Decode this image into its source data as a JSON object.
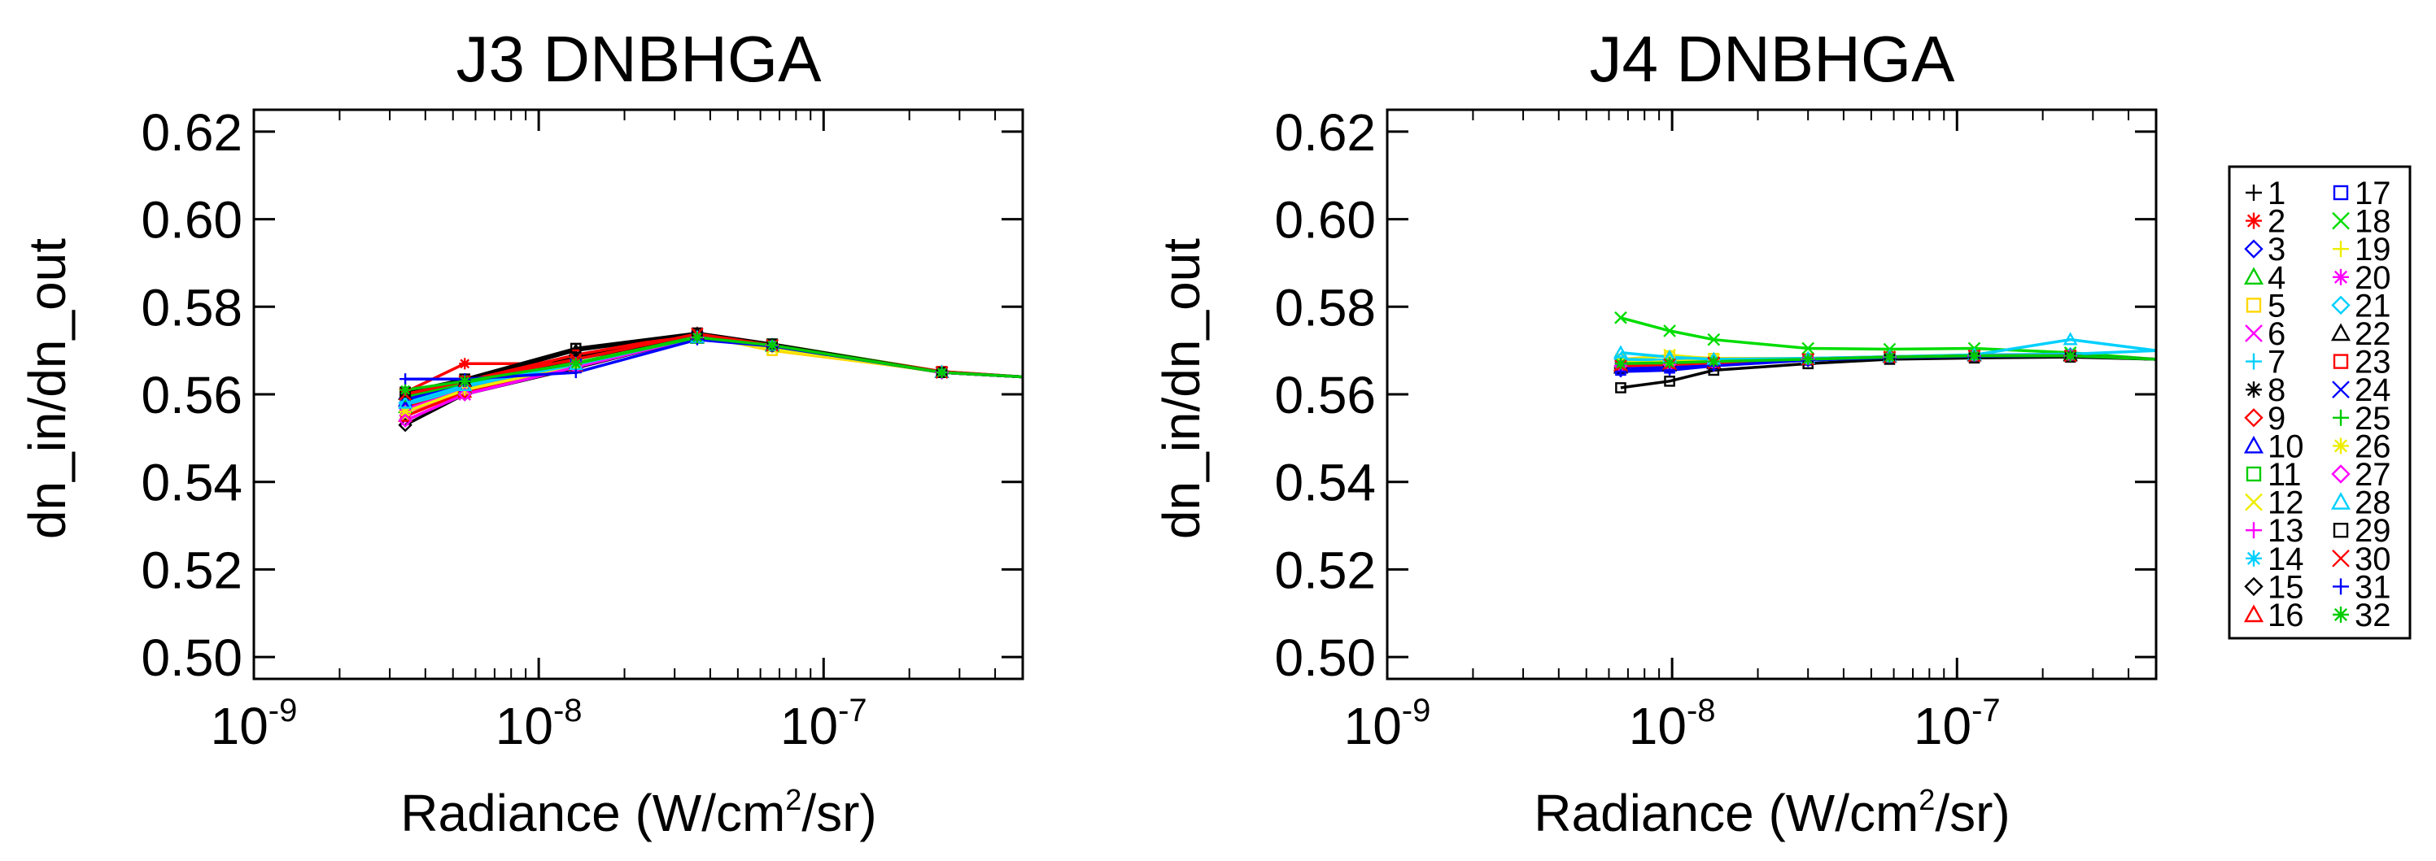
{
  "colors": [
    "#000000",
    "#ff0000",
    "#0000ff",
    "#00cc00",
    "#ffd700",
    "#ff00ff",
    "#00d0ff",
    "#000000",
    "#ff0000",
    "#0000ff",
    "#00cc00",
    "#eded00",
    "#ff00ff",
    "#00d0ff",
    "#000000",
    "#ff0000",
    "#0000ff",
    "#00dd00",
    "#eded00",
    "#ff00ff",
    "#00d0ff",
    "#000000",
    "#ff0000",
    "#0000ff",
    "#00cc00",
    "#eded00",
    "#ff00ff",
    "#00d0ff",
    "#000000",
    "#ff0000",
    "#0000ff",
    "#00cc00"
  ],
  "symbols": [
    "plus",
    "asterisk",
    "diamond",
    "triangle",
    "square",
    "x",
    "plus",
    "asterisk",
    "diamond",
    "triangle",
    "square",
    "x",
    "plus",
    "asterisk",
    "diamond",
    "triangle",
    "square",
    "x",
    "plus",
    "asterisk",
    "diamond",
    "triangle",
    "square",
    "x",
    "plus",
    "asterisk",
    "diamond",
    "triangle",
    "square",
    "x",
    "plus",
    "asterisk"
  ],
  "legend": {
    "labels": [
      "1",
      "2",
      "3",
      "4",
      "5",
      "6",
      "7",
      "8",
      "9",
      "10",
      "11",
      "12",
      "13",
      "14",
      "15",
      "16",
      "17",
      "18",
      "19",
      "20",
      "21",
      "22",
      "23",
      "24",
      "25",
      "26",
      "27",
      "28",
      "29",
      "30",
      "31",
      "32"
    ]
  },
  "chart_data": [
    {
      "type": "line",
      "title": "J3 DNBHGA",
      "ylabel": "dn_in/dn_out",
      "xlabel_pre": "Radiance (W/cm",
      "xlabel_sup": "2",
      "xlabel_post": "/sr)",
      "xscale": "log",
      "xlim": [
        1e-09,
        5e-07
      ],
      "ylim": [
        0.495,
        0.625
      ],
      "xticks": [
        {
          "base": "10",
          "exp": "-9",
          "value": 1e-09
        },
        {
          "base": "10",
          "exp": "-8",
          "value": 1e-08
        },
        {
          "base": "10",
          "exp": "-7",
          "value": 1e-07
        }
      ],
      "yticks": [
        {
          "label": "0.50",
          "value": 0.5
        },
        {
          "label": "0.52",
          "value": 0.52
        },
        {
          "label": "0.54",
          "value": 0.54
        },
        {
          "label": "0.56",
          "value": 0.56
        },
        {
          "label": "0.58",
          "value": 0.58
        },
        {
          "label": "0.60",
          "value": 0.6
        },
        {
          "label": "0.62",
          "value": 0.62
        }
      ],
      "x": [
        3.4e-09,
        5.5e-09,
        1.35e-08,
        3.6e-08,
        6.6e-08,
        2.6e-07,
        5e-07
      ],
      "series": [
        {
          "name": "1",
          "values": [
            0.56,
            0.5635,
            0.5685,
            0.5735,
            0.571,
            0.565,
            0.564
          ]
        },
        {
          "name": "2",
          "values": [
            0.5605,
            0.567,
            0.567,
            0.574,
            0.5715,
            0.5652,
            0.564
          ]
        },
        {
          "name": "3",
          "values": [
            0.558,
            0.562,
            0.566,
            0.573,
            0.5712,
            0.565,
            0.564
          ]
        },
        {
          "name": "4",
          "values": [
            0.557,
            0.5615,
            0.5665,
            0.5728,
            0.571,
            0.565,
            0.564
          ]
        },
        {
          "name": "5",
          "values": [
            0.556,
            0.561,
            0.567,
            0.5735,
            0.57,
            0.5652,
            0.564
          ]
        },
        {
          "name": "6",
          "values": [
            0.554,
            0.56,
            0.5665,
            0.5732,
            0.5712,
            0.565,
            0.564
          ]
        },
        {
          "name": "7",
          "values": [
            0.5575,
            0.5615,
            0.5668,
            0.573,
            0.5712,
            0.565,
            0.564
          ]
        },
        {
          "name": "8",
          "values": [
            0.56,
            0.5625,
            0.568,
            0.5735,
            0.5712,
            0.565,
            0.564
          ]
        },
        {
          "name": "9",
          "values": [
            0.557,
            0.5605,
            0.5668,
            0.573,
            0.5712,
            0.565,
            0.564
          ]
        },
        {
          "name": "10",
          "values": [
            0.5585,
            0.562,
            0.567,
            0.573,
            0.5712,
            0.565,
            0.564
          ]
        },
        {
          "name": "11",
          "values": [
            0.5595,
            0.563,
            0.567,
            0.5732,
            0.5715,
            0.5652,
            0.564
          ]
        },
        {
          "name": "12",
          "values": [
            0.555,
            0.561,
            0.5668,
            0.573,
            0.5705,
            0.565,
            0.564
          ]
        },
        {
          "name": "13",
          "values": [
            0.556,
            0.5605,
            0.5666,
            0.573,
            0.5712,
            0.565,
            0.564
          ]
        },
        {
          "name": "14",
          "values": [
            0.559,
            0.5625,
            0.5668,
            0.573,
            0.5712,
            0.565,
            0.564
          ]
        },
        {
          "name": "15",
          "values": [
            0.553,
            0.56,
            0.566,
            0.573,
            0.571,
            0.565,
            0.564
          ]
        },
        {
          "name": "16",
          "values": [
            0.555,
            0.5605,
            0.5665,
            0.573,
            0.5712,
            0.565,
            0.564
          ]
        },
        {
          "name": "17",
          "values": [
            0.559,
            0.562,
            0.567,
            0.573,
            0.5712,
            0.565,
            0.564
          ]
        },
        {
          "name": "18",
          "values": [
            0.56,
            0.5625,
            0.5672,
            0.573,
            0.5713,
            0.565,
            0.564
          ]
        },
        {
          "name": "19",
          "values": [
            0.556,
            0.561,
            0.5668,
            0.573,
            0.5708,
            0.565,
            0.564
          ]
        },
        {
          "name": "20",
          "values": [
            0.5565,
            0.561,
            0.5666,
            0.573,
            0.5712,
            0.565,
            0.564
          ]
        },
        {
          "name": "21",
          "values": [
            0.558,
            0.562,
            0.5668,
            0.573,
            0.5712,
            0.565,
            0.564
          ]
        },
        {
          "name": "22",
          "values": [
            0.56,
            0.563,
            0.57,
            0.5738,
            0.5712,
            0.565,
            0.564
          ]
        },
        {
          "name": "23",
          "values": [
            0.5605,
            0.563,
            0.569,
            0.574,
            0.5712,
            0.5652,
            0.564
          ]
        },
        {
          "name": "24",
          "values": [
            0.558,
            0.562,
            0.5668,
            0.573,
            0.5712,
            0.565,
            0.564
          ]
        },
        {
          "name": "25",
          "values": [
            0.5595,
            0.5625,
            0.5668,
            0.573,
            0.5712,
            0.565,
            0.564
          ]
        },
        {
          "name": "26",
          "values": [
            0.556,
            0.561,
            0.5666,
            0.573,
            0.571,
            0.565,
            0.564
          ]
        },
        {
          "name": "27",
          "values": [
            0.554,
            0.56,
            0.5662,
            0.573,
            0.5712,
            0.565,
            0.564
          ]
        },
        {
          "name": "28",
          "values": [
            0.558,
            0.562,
            0.5668,
            0.573,
            0.5712,
            0.565,
            0.564
          ]
        },
        {
          "name": "29",
          "values": [
            0.5605,
            0.5635,
            0.5705,
            0.574,
            0.5715,
            0.565,
            0.564
          ]
        },
        {
          "name": "30",
          "values": [
            0.56,
            0.563,
            0.568,
            0.5738,
            0.5712,
            0.565,
            0.564
          ]
        },
        {
          "name": "31",
          "values": [
            0.5635,
            0.5635,
            0.565,
            0.5725,
            0.571,
            0.565,
            0.564
          ]
        },
        {
          "name": "32",
          "values": [
            0.561,
            0.563,
            0.567,
            0.573,
            0.5712,
            0.565,
            0.564
          ]
        }
      ]
    },
    {
      "type": "line",
      "title": "J4 DNBHGA",
      "ylabel": "dn_in/dn_out",
      "xlabel_pre": "Radiance (W/cm",
      "xlabel_sup": "2",
      "xlabel_post": "/sr)",
      "xscale": "log",
      "xlim": [
        1e-09,
        5e-07
      ],
      "ylim": [
        0.495,
        0.625
      ],
      "xticks": [
        {
          "base": "10",
          "exp": "-9",
          "value": 1e-09
        },
        {
          "base": "10",
          "exp": "-8",
          "value": 1e-08
        },
        {
          "base": "10",
          "exp": "-7",
          "value": 1e-07
        }
      ],
      "yticks": [
        {
          "label": "0.50",
          "value": 0.5
        },
        {
          "label": "0.52",
          "value": 0.52
        },
        {
          "label": "0.54",
          "value": 0.54
        },
        {
          "label": "0.56",
          "value": 0.56
        },
        {
          "label": "0.58",
          "value": 0.58
        },
        {
          "label": "0.60",
          "value": 0.6
        },
        {
          "label": "0.62",
          "value": 0.62
        }
      ],
      "x": [
        6.6e-09,
        9.8e-09,
        1.4e-08,
        3e-08,
        5.8e-08,
        1.15e-07,
        2.5e-07,
        5e-07
      ],
      "series": [
        {
          "name": "1",
          "values": [
            0.566,
            0.5665,
            0.567,
            0.568,
            0.5685,
            0.5688,
            0.5688,
            0.568
          ]
        },
        {
          "name": "2",
          "values": [
            0.567,
            0.5672,
            0.5675,
            0.568,
            0.5685,
            0.5688,
            0.5688,
            0.568
          ]
        },
        {
          "name": "3",
          "values": [
            0.5655,
            0.566,
            0.5668,
            0.5678,
            0.5684,
            0.5687,
            0.5688,
            0.568
          ]
        },
        {
          "name": "4",
          "values": [
            0.5665,
            0.5668,
            0.5672,
            0.568,
            0.5685,
            0.5688,
            0.569,
            0.568
          ]
        },
        {
          "name": "5",
          "values": [
            0.568,
            0.5688,
            0.5682,
            0.5682,
            0.5686,
            0.5688,
            0.5688,
            0.568
          ]
        },
        {
          "name": "6",
          "values": [
            0.5665,
            0.5668,
            0.5672,
            0.568,
            0.5685,
            0.5688,
            0.5688,
            0.568
          ]
        },
        {
          "name": "7",
          "values": [
            0.567,
            0.5672,
            0.5675,
            0.568,
            0.5685,
            0.5688,
            0.5688,
            0.568
          ]
        },
        {
          "name": "8",
          "values": [
            0.567,
            0.5672,
            0.5675,
            0.568,
            0.5685,
            0.5688,
            0.5688,
            0.568
          ]
        },
        {
          "name": "9",
          "values": [
            0.5665,
            0.5668,
            0.5672,
            0.568,
            0.5685,
            0.5688,
            0.5688,
            0.568
          ]
        },
        {
          "name": "10",
          "values": [
            0.566,
            0.5665,
            0.567,
            0.568,
            0.5685,
            0.5688,
            0.5688,
            0.568
          ]
        },
        {
          "name": "11",
          "values": [
            0.5665,
            0.5668,
            0.5672,
            0.568,
            0.5685,
            0.5688,
            0.5688,
            0.568
          ]
        },
        {
          "name": "12",
          "values": [
            0.5675,
            0.569,
            0.568,
            0.5682,
            0.5686,
            0.5688,
            0.5688,
            0.568
          ]
        },
        {
          "name": "13",
          "values": [
            0.5665,
            0.5668,
            0.5672,
            0.568,
            0.5685,
            0.5688,
            0.5688,
            0.568
          ]
        },
        {
          "name": "14",
          "values": [
            0.567,
            0.5672,
            0.5675,
            0.568,
            0.5685,
            0.5688,
            0.5688,
            0.568
          ]
        },
        {
          "name": "15",
          "values": [
            0.566,
            0.5665,
            0.567,
            0.568,
            0.5685,
            0.5688,
            0.5688,
            0.568
          ]
        },
        {
          "name": "16",
          "values": [
            0.5665,
            0.5668,
            0.5672,
            0.568,
            0.5685,
            0.5688,
            0.5688,
            0.568
          ]
        },
        {
          "name": "17",
          "values": [
            0.5655,
            0.566,
            0.5668,
            0.5678,
            0.5684,
            0.5687,
            0.5688,
            0.568
          ]
        },
        {
          "name": "18",
          "values": [
            0.5775,
            0.5745,
            0.5725,
            0.5705,
            0.5703,
            0.5705,
            0.5695,
            0.568
          ]
        },
        {
          "name": "19",
          "values": [
            0.567,
            0.568,
            0.5678,
            0.5681,
            0.5685,
            0.5688,
            0.5688,
            0.568
          ]
        },
        {
          "name": "20",
          "values": [
            0.5665,
            0.5668,
            0.5672,
            0.568,
            0.5685,
            0.5688,
            0.5688,
            0.568
          ]
        },
        {
          "name": "21",
          "values": [
            0.568,
            0.5678,
            0.5678,
            0.5682,
            0.5686,
            0.569,
            0.5692,
            0.57
          ]
        },
        {
          "name": "22",
          "values": [
            0.566,
            0.5665,
            0.567,
            0.568,
            0.5685,
            0.5688,
            0.5688,
            0.568
          ]
        },
        {
          "name": "23",
          "values": [
            0.5665,
            0.5668,
            0.5672,
            0.568,
            0.5685,
            0.5688,
            0.5688,
            0.568
          ]
        },
        {
          "name": "24",
          "values": [
            0.566,
            0.5665,
            0.567,
            0.568,
            0.5685,
            0.5688,
            0.5688,
            0.568
          ]
        },
        {
          "name": "25",
          "values": [
            0.567,
            0.5672,
            0.5675,
            0.568,
            0.5685,
            0.5688,
            0.5688,
            0.568
          ]
        },
        {
          "name": "26",
          "values": [
            0.567,
            0.5675,
            0.5678,
            0.5681,
            0.5685,
            0.5688,
            0.5688,
            0.568
          ]
        },
        {
          "name": "27",
          "values": [
            0.5665,
            0.5668,
            0.5672,
            0.568,
            0.5685,
            0.5688,
            0.5688,
            0.568
          ]
        },
        {
          "name": "28",
          "values": [
            0.5695,
            0.5685,
            0.568,
            0.5682,
            0.5686,
            0.569,
            0.5725,
            0.57
          ]
        },
        {
          "name": "29",
          "values": [
            0.5615,
            0.563,
            0.5655,
            0.567,
            0.568,
            0.5683,
            0.5685,
            0.568
          ]
        },
        {
          "name": "30",
          "values": [
            0.5665,
            0.5668,
            0.5672,
            0.568,
            0.5685,
            0.5688,
            0.5688,
            0.568
          ]
        },
        {
          "name": "31",
          "values": [
            0.5652,
            0.5655,
            0.5665,
            0.5678,
            0.5684,
            0.5687,
            0.5688,
            0.568
          ]
        },
        {
          "name": "32",
          "values": [
            0.567,
            0.5672,
            0.5675,
            0.568,
            0.5685,
            0.5688,
            0.5688,
            0.568
          ]
        }
      ]
    }
  ]
}
